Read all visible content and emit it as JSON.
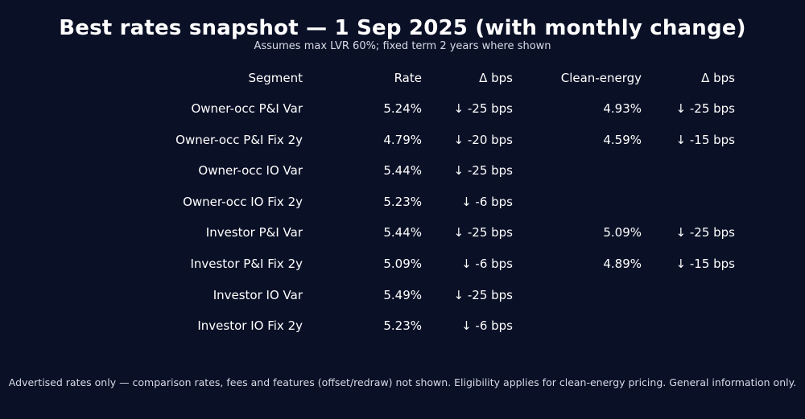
{
  "colors": {
    "background": "#0a1026",
    "text": "#ffffff",
    "muted": "#d8dbe6"
  },
  "chart_data": {
    "type": "table",
    "title": "Best rates snapshot — 1 Sep 2025 (with monthly change)",
    "subtitle": "Assumes max LVR 60%; fixed term 2 years where shown",
    "columns": [
      "Segment",
      "Rate",
      "Δ bps",
      "Clean-energy",
      "Δ bps"
    ],
    "rows": [
      [
        "Owner-occ P&I Var",
        "5.24%",
        "↓ -25 bps",
        "4.93%",
        "↓ -25 bps"
      ],
      [
        "Owner-occ P&I Fix 2y",
        "4.79%",
        "↓ -20 bps",
        "4.59%",
        "↓ -15 bps"
      ],
      [
        "Owner-occ IO Var",
        "5.44%",
        "↓ -25 bps",
        "",
        ""
      ],
      [
        "Owner-occ IO Fix 2y",
        "5.23%",
        "↓ -6 bps",
        "",
        ""
      ],
      [
        "Investor P&I Var",
        "5.44%",
        "↓ -25 bps",
        "5.09%",
        "↓ -25 bps"
      ],
      [
        "Investor P&I Fix 2y",
        "5.09%",
        "↓ -6 bps",
        "4.89%",
        "↓ -15 bps"
      ],
      [
        "Investor IO Var",
        "5.49%",
        "↓ -25 bps",
        "",
        ""
      ],
      [
        "Investor IO Fix 2y",
        "5.23%",
        "↓ -6 bps",
        "",
        ""
      ]
    ],
    "footnote": "Advertised rates only — comparison rates, fees and features (offset/redraw) not shown. Eligibility applies for clean-energy pricing. General information only."
  }
}
